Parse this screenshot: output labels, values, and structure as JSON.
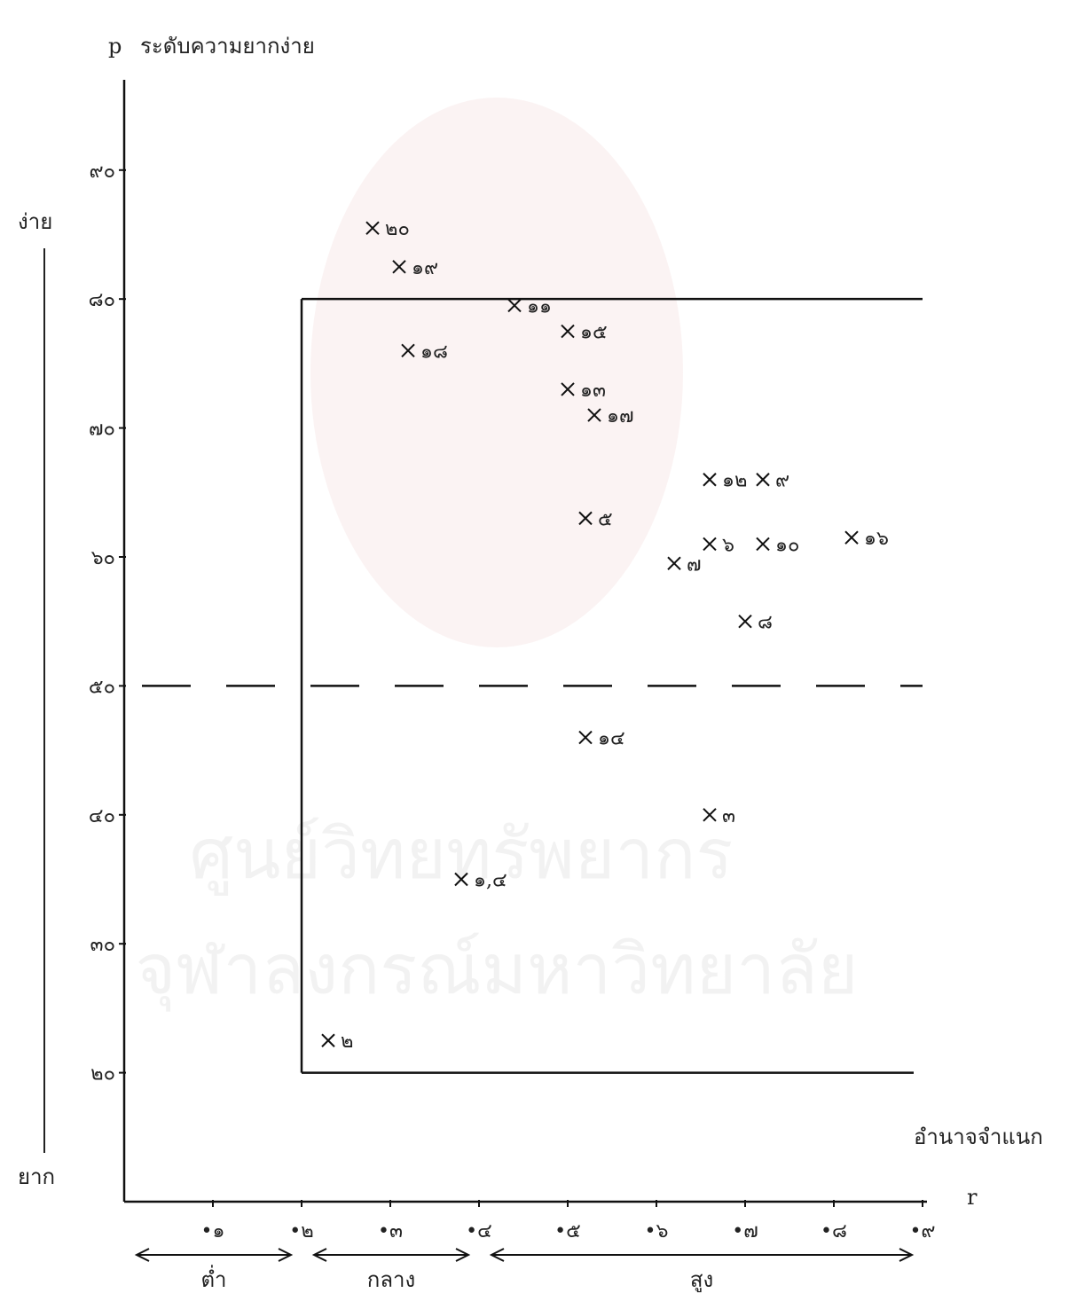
{
  "chart_data": {
    "type": "scatter",
    "y_label_symbol": "p",
    "y_label": "ระดับความยากง่าย",
    "x_label": "อำนาจจำแนก",
    "x_label_symbol": "r",
    "y_side_top": "ง่าย",
    "y_side_bottom": "ยาก",
    "y_ticks": [
      {
        "value": 20,
        "label": "๒๐"
      },
      {
        "value": 30,
        "label": "๓๐"
      },
      {
        "value": 40,
        "label": "๔๐"
      },
      {
        "value": 50,
        "label": "๕๐"
      },
      {
        "value": 60,
        "label": "๖๐"
      },
      {
        "value": 70,
        "label": "๗๐"
      },
      {
        "value": 80,
        "label": "๘๐"
      },
      {
        "value": 90,
        "label": "๙๐"
      }
    ],
    "x_ticks": [
      {
        "value": 0.1,
        "label": "•๑"
      },
      {
        "value": 0.2,
        "label": "•๒"
      },
      {
        "value": 0.3,
        "label": "•๓"
      },
      {
        "value": 0.4,
        "label": "•๔"
      },
      {
        "value": 0.5,
        "label": "•๕"
      },
      {
        "value": 0.6,
        "label": "•๖"
      },
      {
        "value": 0.7,
        "label": "•๗"
      },
      {
        "value": 0.8,
        "label": "•๘"
      },
      {
        "value": 0.9,
        "label": "•๙"
      }
    ],
    "xlim": [
      0,
      0.9
    ],
    "ylim": [
      10,
      97
    ],
    "bands": [
      {
        "label": "ต่ำ",
        "from": 0.0,
        "to": 0.2
      },
      {
        "label": "กลาง",
        "from": 0.2,
        "to": 0.4
      },
      {
        "label": "สูง",
        "from": 0.4,
        "to": 0.9
      }
    ],
    "reference_line_y": 50,
    "acceptance_region": {
      "x_min": 0.2,
      "y_min": 20,
      "y_max": 80
    },
    "points": [
      {
        "label": "๒๐",
        "x": 0.28,
        "y": 85.5
      },
      {
        "label": "๑๙",
        "x": 0.31,
        "y": 82.5
      },
      {
        "label": "๑๑",
        "x": 0.44,
        "y": 79.5
      },
      {
        "label": "๑๕",
        "x": 0.5,
        "y": 77.5
      },
      {
        "label": "๑๘",
        "x": 0.32,
        "y": 76.0
      },
      {
        "label": "๑๓",
        "x": 0.5,
        "y": 73.0
      },
      {
        "label": "๑๗",
        "x": 0.53,
        "y": 71.0
      },
      {
        "label": "๑๒",
        "x": 0.66,
        "y": 66.0
      },
      {
        "label": "๙",
        "x": 0.72,
        "y": 66.0
      },
      {
        "label": "๕",
        "x": 0.52,
        "y": 63.0
      },
      {
        "label": "๖",
        "x": 0.66,
        "y": 61.0
      },
      {
        "label": "๑๐",
        "x": 0.72,
        "y": 61.0
      },
      {
        "label": "๑๖",
        "x": 0.82,
        "y": 61.5
      },
      {
        "label": "๗",
        "x": 0.62,
        "y": 59.5
      },
      {
        "label": "๘",
        "x": 0.7,
        "y": 55.0
      },
      {
        "label": "๑๔",
        "x": 0.52,
        "y": 46.0
      },
      {
        "label": "๓",
        "x": 0.66,
        "y": 40.0
      },
      {
        "label": "๑,๔",
        "x": 0.38,
        "y": 35.0
      },
      {
        "label": "๒",
        "x": 0.23,
        "y": 22.5
      }
    ]
  },
  "watermark": {
    "line1": "ศูนย์วิทยทรัพยากร",
    "line2": "จุฬาลงกรณ์มหาวิทยาลัย"
  }
}
